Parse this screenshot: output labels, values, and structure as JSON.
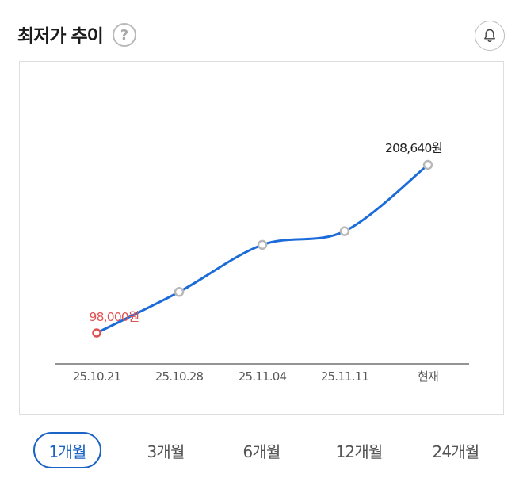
{
  "header": {
    "title": "최저가 추이",
    "help_icon": "?",
    "bell_icon": "bell-icon"
  },
  "chart_data": {
    "type": "line",
    "x": [
      "25.10.21",
      "25.10.28",
      "25.11.04",
      "25.11.11",
      "현재"
    ],
    "values": [
      98000,
      125000,
      156000,
      165000,
      208640
    ],
    "point_labels": {
      "min": "98,000원",
      "current": "208,640원"
    },
    "colors": {
      "line": "#1b6bd9",
      "min_marker": "#e05252",
      "marker": "#b8b8b8",
      "min_label": "#e05252"
    }
  },
  "tabs": [
    {
      "label": "1개월",
      "active": true
    },
    {
      "label": "3개월",
      "active": false
    },
    {
      "label": "6개월",
      "active": false
    },
    {
      "label": "12개월",
      "active": false
    },
    {
      "label": "24개월",
      "active": false
    }
  ],
  "colors": {
    "accent": "#1b63c5"
  }
}
